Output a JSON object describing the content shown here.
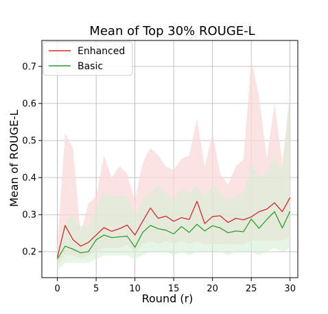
{
  "chart_data": {
    "type": "line",
    "title": "Mean of Top 30% ROUGE-L",
    "xlabel": "Round (r)",
    "ylabel": "Mean of ROUGE-L",
    "xlim": [
      -2,
      31
    ],
    "ylim": [
      0.13,
      0.77
    ],
    "xticks": [
      0,
      5,
      10,
      15,
      20,
      25,
      30
    ],
    "yticks": [
      0.2,
      0.3,
      0.4,
      0.5,
      0.6,
      0.7
    ],
    "ytick_labels": [
      "0.2",
      "0.3",
      "0.4",
      "0.5",
      "0.6",
      "0.7"
    ],
    "grid": true,
    "legend_position": "top-left",
    "x": [
      0,
      1,
      2,
      3,
      4,
      5,
      6,
      7,
      8,
      9,
      10,
      11,
      12,
      13,
      14,
      15,
      16,
      17,
      18,
      19,
      20,
      21,
      22,
      23,
      24,
      25,
      26,
      27,
      28,
      29,
      30
    ],
    "series": [
      {
        "name": "Enhanced",
        "color": "#d62728",
        "band_color": "#fbd9d9",
        "values": [
          0.185,
          0.271,
          0.233,
          0.215,
          0.225,
          0.245,
          0.265,
          0.255,
          0.262,
          0.272,
          0.245,
          0.282,
          0.318,
          0.29,
          0.296,
          0.282,
          0.292,
          0.287,
          0.336,
          0.276,
          0.295,
          0.297,
          0.279,
          0.29,
          0.286,
          0.294,
          0.308,
          0.315,
          0.332,
          0.308,
          0.346
        ],
        "upper": [
          0.22,
          0.52,
          0.48,
          0.25,
          0.33,
          0.35,
          0.46,
          0.4,
          0.43,
          0.41,
          0.34,
          0.44,
          0.48,
          0.46,
          0.43,
          0.42,
          0.45,
          0.46,
          0.56,
          0.43,
          0.52,
          0.41,
          0.38,
          0.43,
          0.45,
          0.72,
          0.62,
          0.45,
          0.6,
          0.44,
          0.62
        ],
        "lower": [
          0.16,
          0.19,
          0.19,
          0.18,
          0.19,
          0.2,
          0.21,
          0.21,
          0.21,
          0.22,
          0.2,
          0.22,
          0.23,
          0.22,
          0.23,
          0.22,
          0.23,
          0.22,
          0.23,
          0.22,
          0.22,
          0.22,
          0.22,
          0.22,
          0.22,
          0.23,
          0.23,
          0.23,
          0.23,
          0.23,
          0.24
        ]
      },
      {
        "name": "Basic",
        "color": "#2ca02c",
        "band_color": "#d6efd6",
        "values": [
          0.18,
          0.215,
          0.207,
          0.197,
          0.2,
          0.232,
          0.245,
          0.238,
          0.24,
          0.242,
          0.212,
          0.252,
          0.271,
          0.262,
          0.258,
          0.248,
          0.268,
          0.252,
          0.274,
          0.256,
          0.27,
          0.264,
          0.251,
          0.256,
          0.254,
          0.288,
          0.263,
          0.287,
          0.308,
          0.264,
          0.309
        ],
        "upper": [
          0.21,
          0.28,
          0.3,
          0.27,
          0.27,
          0.32,
          0.36,
          0.35,
          0.35,
          0.35,
          0.3,
          0.34,
          0.36,
          0.38,
          0.36,
          0.34,
          0.37,
          0.36,
          0.38,
          0.35,
          0.38,
          0.36,
          0.34,
          0.35,
          0.36,
          0.44,
          0.4,
          0.41,
          0.46,
          0.42,
          0.64
        ],
        "lower": [
          0.15,
          0.17,
          0.17,
          0.17,
          0.17,
          0.18,
          0.19,
          0.19,
          0.19,
          0.19,
          0.18,
          0.19,
          0.2,
          0.2,
          0.2,
          0.19,
          0.2,
          0.19,
          0.2,
          0.2,
          0.2,
          0.2,
          0.19,
          0.2,
          0.2,
          0.2,
          0.19,
          0.2,
          0.21,
          0.2,
          0.21
        ]
      }
    ]
  }
}
